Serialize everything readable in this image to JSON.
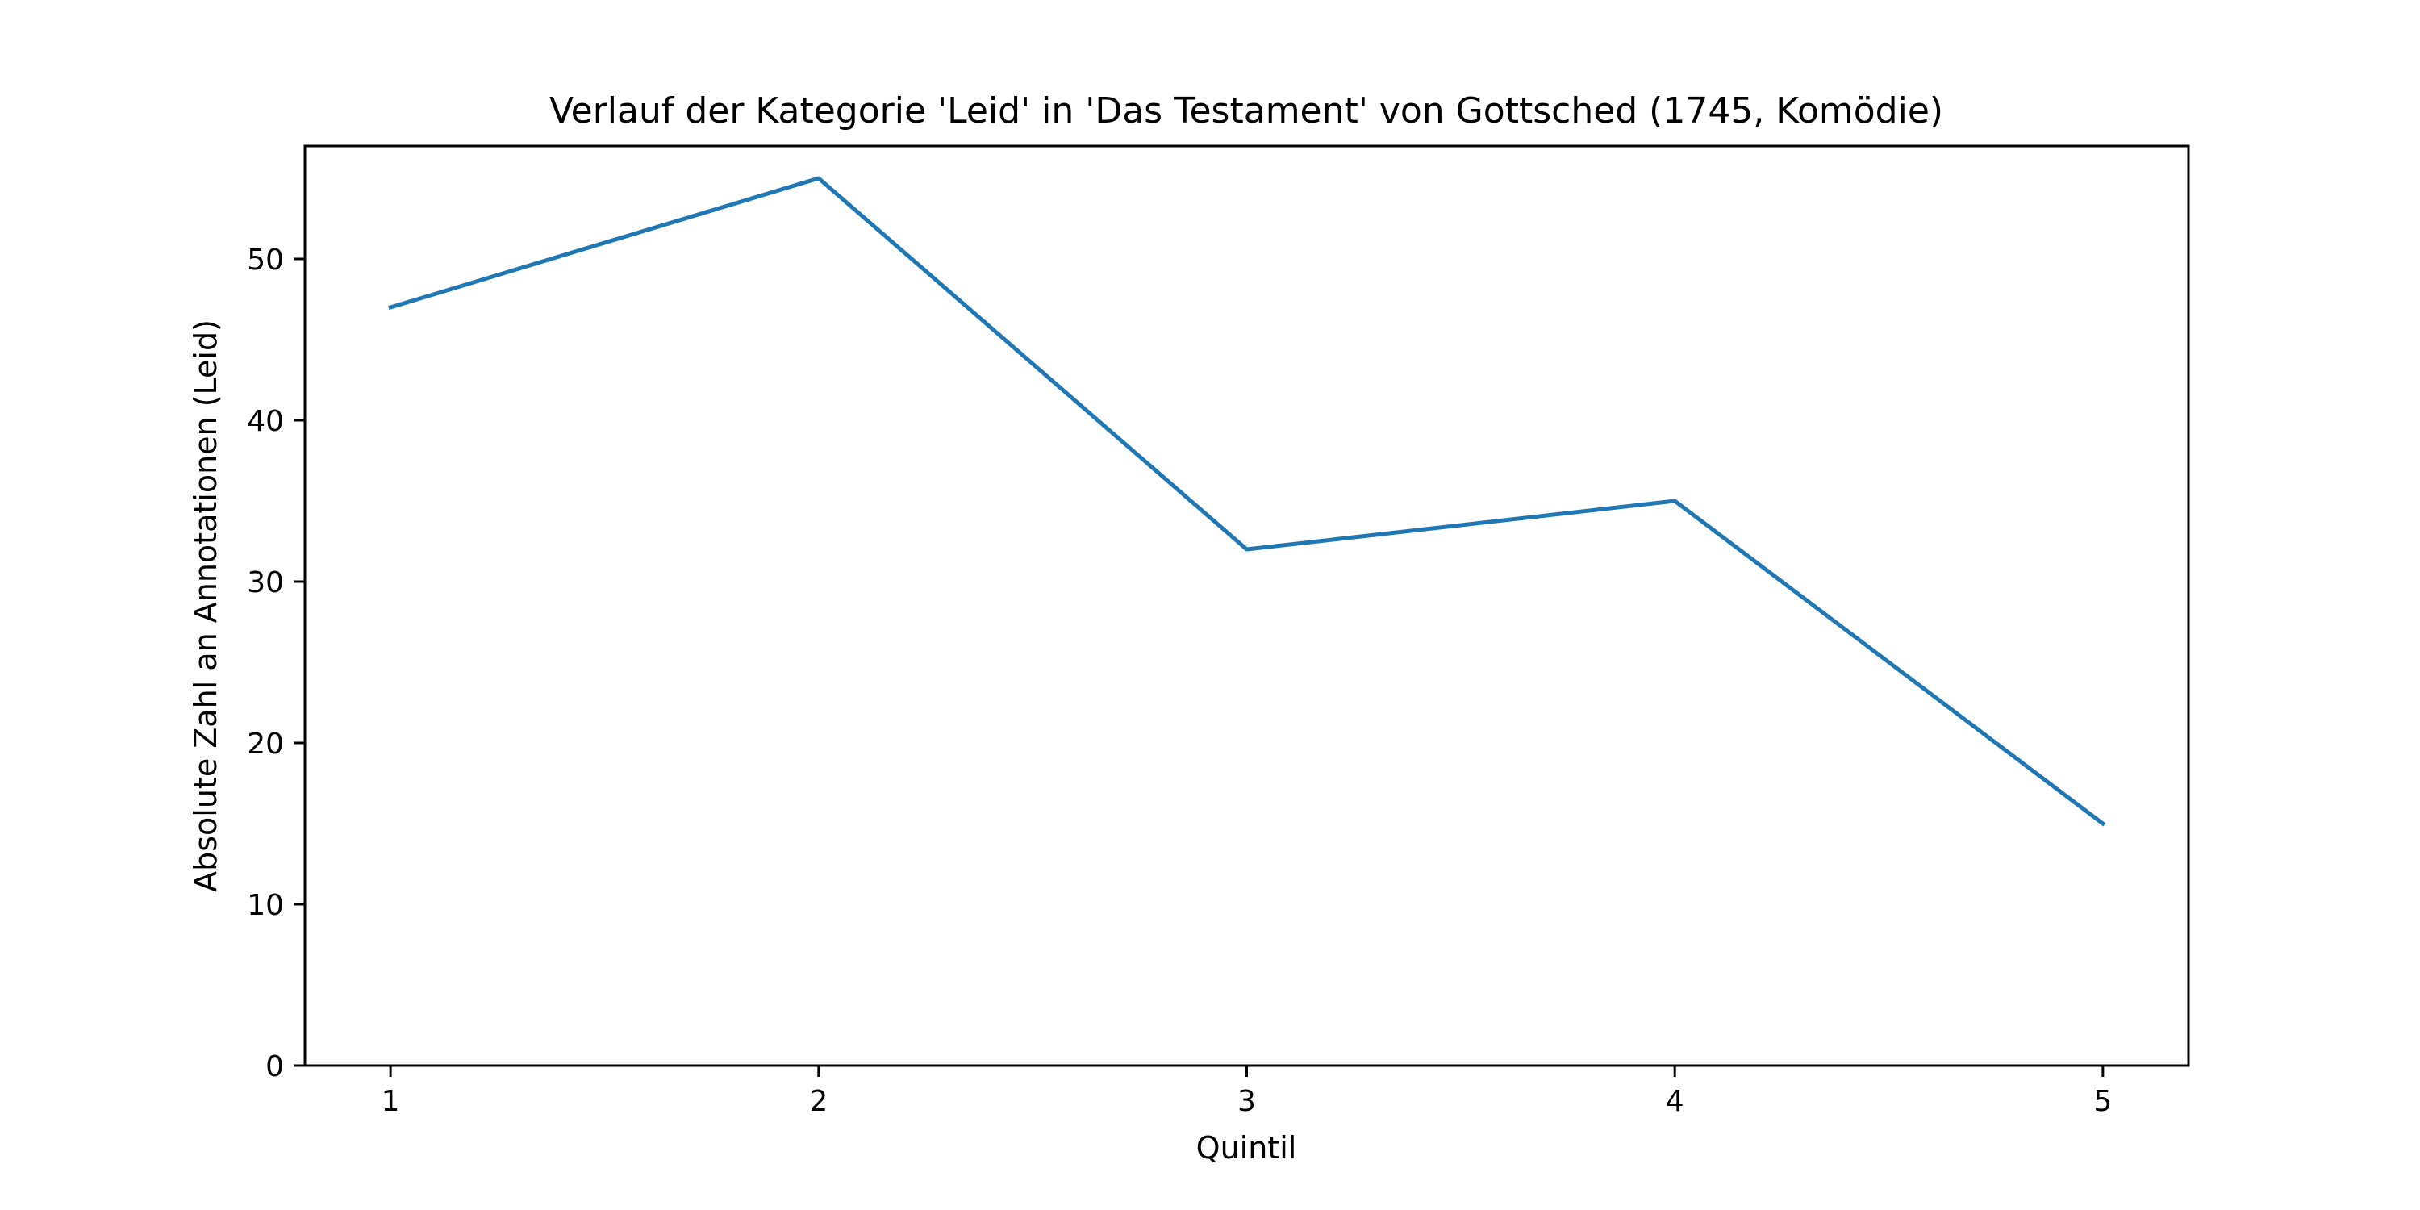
{
  "chart_data": {
    "type": "line",
    "title": "Verlauf der Kategorie 'Leid' in 'Das Testament' von Gottsched (1745, Komödie)",
    "xlabel": "Quintil",
    "ylabel": "Absolute Zahl an Annotationen (Leid)",
    "x": [
      1,
      2,
      3,
      4,
      5
    ],
    "x_tick_labels": [
      "1",
      "2",
      "3",
      "4",
      "5"
    ],
    "xlim": [
      0.8,
      5.2
    ],
    "ylim": [
      0,
      57
    ],
    "y_ticks": [
      0,
      10,
      20,
      30,
      40,
      50
    ],
    "y_tick_labels": [
      "0",
      "10",
      "20",
      "30",
      "40",
      "50"
    ],
    "series": [
      {
        "values": [
          47,
          55,
          32,
          35,
          15
        ],
        "color": "#1f77b4"
      }
    ],
    "grid": false,
    "legend": "none"
  }
}
